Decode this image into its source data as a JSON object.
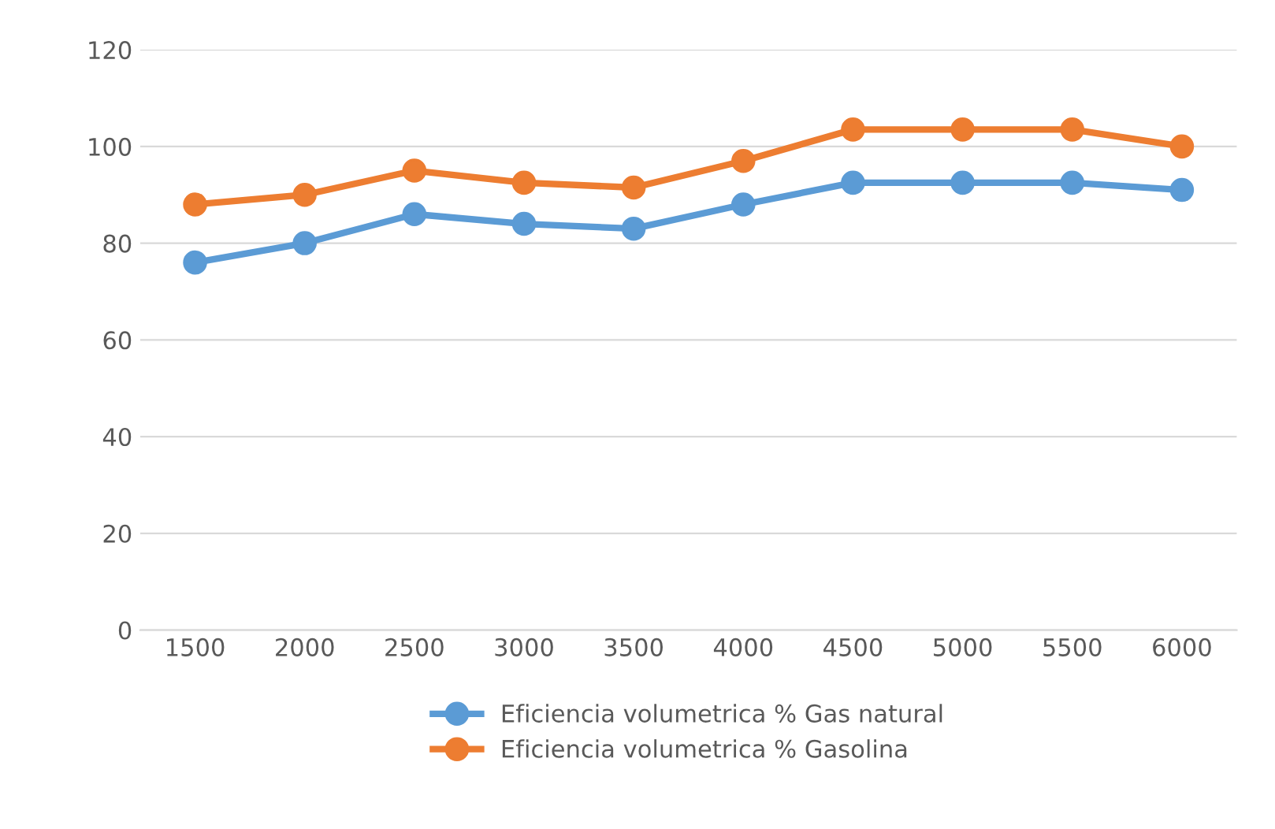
{
  "chart_data": {
    "type": "line",
    "categories": [
      "1500",
      "2000",
      "2500",
      "3000",
      "3500",
      "4000",
      "4500",
      "5000",
      "5500",
      "6000"
    ],
    "series": [
      {
        "name": "Eficiencia volumetrica % Gas natural",
        "color": "#5b9bd5",
        "values": [
          76,
          80,
          86,
          84,
          83,
          88,
          92.5,
          92.5,
          92.5,
          91
        ]
      },
      {
        "name": "Eficiencia volumetrica % Gasolina",
        "color": "#ed7d31",
        "values": [
          88,
          90,
          95,
          92.5,
          91.5,
          97,
          103.5,
          103.5,
          103.5,
          100
        ]
      }
    ],
    "ylim": [
      0,
      120
    ],
    "yticks": [
      0,
      20,
      40,
      60,
      80,
      100,
      120
    ],
    "grid": "y",
    "legend": "bottom",
    "marker": "circle",
    "line_style": "solid"
  }
}
